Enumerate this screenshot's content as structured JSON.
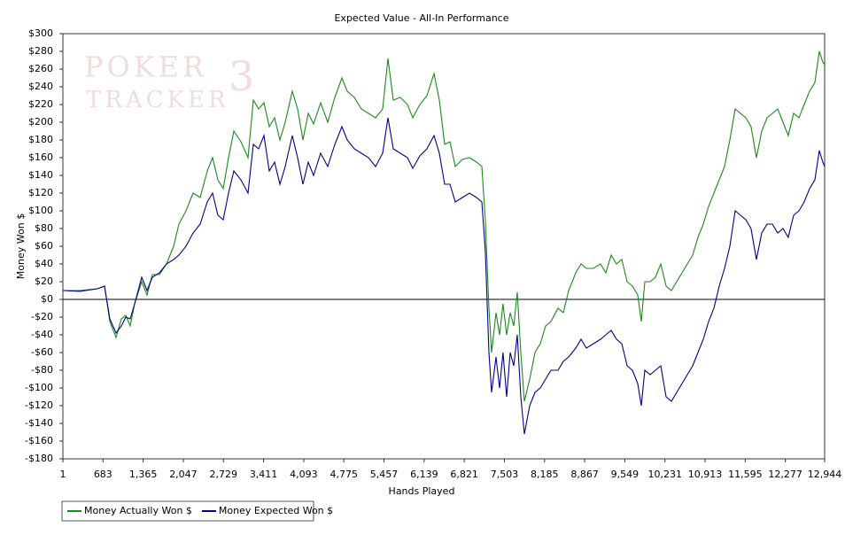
{
  "chart_data": {
    "type": "line",
    "title": "Expected Value - All-In Performance",
    "watermark": [
      "POKER",
      "3",
      "TRACKER"
    ],
    "xlabel": "Hands Played",
    "ylabel": "Money Won $",
    "xlim": [
      1,
      12944
    ],
    "ylim": [
      -180,
      300
    ],
    "hline": 0,
    "grid": false,
    "legend": "bottom-left",
    "xticks": [
      1,
      683,
      {
        "value": 1365,
        "label": "1,365"
      },
      {
        "value": 2047,
        "label": "2,047"
      },
      {
        "value": 2729,
        "label": "2,729"
      },
      {
        "value": 3411,
        "label": "3,411"
      },
      {
        "value": 4093,
        "label": "4,093"
      },
      {
        "value": 4775,
        "label": "4,775"
      },
      {
        "value": 5457,
        "label": "5,457"
      },
      {
        "value": 6139,
        "label": "6,139"
      },
      {
        "value": 6821,
        "label": "6,821"
      },
      {
        "value": 7503,
        "label": "7,503"
      },
      {
        "value": 8185,
        "label": "8,185"
      },
      {
        "value": 8867,
        "label": "8,867"
      },
      {
        "value": 9549,
        "label": "9,549"
      },
      {
        "value": 10231,
        "label": "10,231"
      },
      {
        "value": 10913,
        "label": "10,913"
      },
      {
        "value": 11595,
        "label": "11,595"
      },
      {
        "value": 12277,
        "label": "12,277"
      },
      {
        "value": 12944,
        "label": "12,944"
      }
    ],
    "yticks": [
      {
        "value": -180,
        "label": "-$180"
      },
      {
        "value": -160,
        "label": "-$160"
      },
      {
        "value": -140,
        "label": "-$140"
      },
      {
        "value": -120,
        "label": "-$120"
      },
      {
        "value": -100,
        "label": "-$100"
      },
      {
        "value": -80,
        "label": "-$80"
      },
      {
        "value": -60,
        "label": "-$60"
      },
      {
        "value": -40,
        "label": "-$40"
      },
      {
        "value": -20,
        "label": "-$20"
      },
      {
        "value": 0,
        "label": "$0"
      },
      {
        "value": 20,
        "label": "$20"
      },
      {
        "value": 40,
        "label": "$40"
      },
      {
        "value": 60,
        "label": "$60"
      },
      {
        "value": 80,
        "label": "$80"
      },
      {
        "value": 100,
        "label": "$100"
      },
      {
        "value": 120,
        "label": "$120"
      },
      {
        "value": 140,
        "label": "$140"
      },
      {
        "value": 160,
        "label": "$160"
      },
      {
        "value": 180,
        "label": "$180"
      },
      {
        "value": 200,
        "label": "$200"
      },
      {
        "value": 220,
        "label": "$220"
      },
      {
        "value": 240,
        "label": "$240"
      },
      {
        "value": 260,
        "label": "$260"
      },
      {
        "value": 280,
        "label": "$280"
      },
      {
        "value": 300,
        "label": "$300"
      }
    ],
    "x": [
      1,
      287,
      588,
      708,
      799,
      904,
      994,
      1070,
      1145,
      1220,
      1340,
      1431,
      1521,
      1641,
      1762,
      1882,
      1973,
      2093,
      2213,
      2334,
      2454,
      2544,
      2635,
      2725,
      2815,
      2906,
      3026,
      3147,
      3237,
      3327,
      3417,
      3508,
      3598,
      3688,
      3779,
      3899,
      3989,
      4080,
      4170,
      4260,
      4381,
      4501,
      4621,
      4742,
      4832,
      4952,
      5073,
      5193,
      5314,
      5434,
      5524,
      5614,
      5735,
      5855,
      5946,
      6066,
      6187,
      6307,
      6397,
      6487,
      6578,
      6668,
      6789,
      6909,
      7029,
      7119,
      7179,
      7240,
      7285,
      7360,
      7420,
      7480,
      7541,
      7601,
      7661,
      7721,
      7782,
      7842,
      7932,
      8023,
      8113,
      8203,
      8293,
      8414,
      8504,
      8594,
      8715,
      8805,
      8895,
      9016,
      9136,
      9227,
      9317,
      9407,
      9497,
      9588,
      9678,
      9768,
      9828,
      9889,
      9979,
      10069,
      10160,
      10250,
      10340,
      10431,
      10521,
      10611,
      10701,
      10792,
      10882,
      10972,
      11062,
      11153,
      11243,
      11333,
      11424,
      11514,
      11604,
      11694,
      11785,
      11875,
      11965,
      12056,
      12146,
      12236,
      12326,
      12417,
      12507,
      12597,
      12688,
      12778,
      12853,
      12913,
      12944
    ],
    "series": [
      {
        "name": "Money Actually Won $",
        "color": "#1a8a1a",
        "values": [
          10,
          10,
          12,
          15,
          -25,
          -43,
          -22,
          -18,
          -30,
          -5,
          20,
          5,
          28,
          28,
          40,
          60,
          85,
          100,
          120,
          115,
          145,
          160,
          135,
          125,
          160,
          190,
          178,
          160,
          225,
          215,
          222,
          195,
          205,
          180,
          200,
          235,
          215,
          180,
          210,
          198,
          222,
          200,
          228,
          250,
          235,
          228,
          215,
          210,
          205,
          215,
          272,
          225,
          228,
          220,
          205,
          220,
          230,
          255,
          225,
          175,
          178,
          150,
          158,
          160,
          155,
          150,
          90,
          -10,
          -60,
          -15,
          -40,
          -5,
          -40,
          -15,
          -30,
          8,
          -60,
          -115,
          -90,
          -60,
          -50,
          -30,
          -25,
          -10,
          -15,
          10,
          30,
          40,
          35,
          35,
          40,
          30,
          50,
          40,
          45,
          20,
          15,
          5,
          -25,
          20,
          20,
          25,
          40,
          15,
          10,
          20,
          30,
          40,
          50,
          70,
          85,
          105,
          120,
          135,
          150,
          180,
          215,
          210,
          205,
          195,
          160,
          190,
          205,
          210,
          215,
          200,
          185,
          210,
          205,
          220,
          235,
          245,
          280,
          268,
          265
        ]
      },
      {
        "name": "Money Expected Won $",
        "color": "#00008b",
        "values": [
          10,
          9,
          12,
          15,
          -22,
          -38,
          -30,
          -20,
          -22,
          -5,
          25,
          10,
          25,
          30,
          40,
          45,
          50,
          60,
          75,
          85,
          110,
          120,
          95,
          90,
          120,
          145,
          135,
          120,
          175,
          170,
          185,
          145,
          155,
          130,
          150,
          185,
          160,
          130,
          155,
          140,
          165,
          150,
          175,
          195,
          180,
          170,
          165,
          160,
          150,
          165,
          205,
          170,
          165,
          160,
          148,
          162,
          170,
          185,
          165,
          130,
          130,
          110,
          115,
          120,
          115,
          110,
          55,
          -60,
          -105,
          -65,
          -100,
          -60,
          -110,
          -60,
          -75,
          -40,
          -110,
          -152,
          -120,
          -105,
          -100,
          -90,
          -80,
          -80,
          -70,
          -65,
          -55,
          -45,
          -55,
          -50,
          -45,
          -40,
          -35,
          -45,
          -50,
          -75,
          -80,
          -95,
          -120,
          -80,
          -85,
          -80,
          -75,
          -110,
          -115,
          -105,
          -95,
          -85,
          -75,
          -60,
          -45,
          -25,
          -10,
          15,
          35,
          60,
          100,
          95,
          90,
          80,
          45,
          75,
          85,
          85,
          75,
          80,
          70,
          95,
          100,
          110,
          125,
          135,
          168,
          155,
          150
        ]
      }
    ]
  }
}
